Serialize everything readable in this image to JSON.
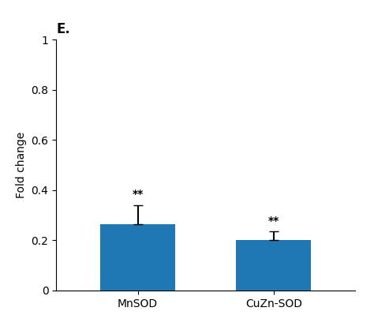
{
  "chart_data": {
    "type": "bar",
    "title": "E.",
    "categories": [
      "MnSOD",
      "CuZn-SOD"
    ],
    "values": [
      0.265,
      0.2
    ],
    "errors": [
      0.075,
      0.035
    ],
    "annotations": [
      "**",
      "**"
    ],
    "ylabel": "Fold change",
    "ylim": [
      0,
      1.0
    ],
    "yticks": [
      0,
      0.2,
      0.4,
      0.6,
      0.8,
      1
    ],
    "grid": false
  }
}
